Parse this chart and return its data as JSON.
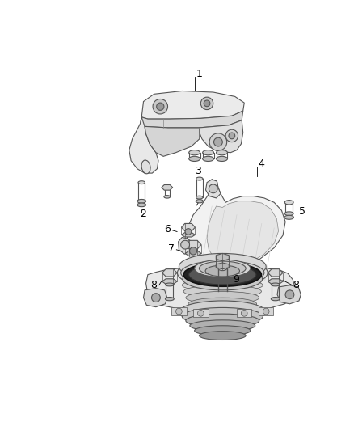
{
  "background_color": "#ffffff",
  "line_color": "#555555",
  "dark_line": "#333333",
  "light_line": "#888888",
  "fill_light": "#f0f0f0",
  "fill_mid": "#e0e0e0",
  "fill_dark": "#cccccc",
  "fill_darker": "#aaaaaa",
  "fig_width": 4.38,
  "fig_height": 5.33,
  "dpi": 100
}
